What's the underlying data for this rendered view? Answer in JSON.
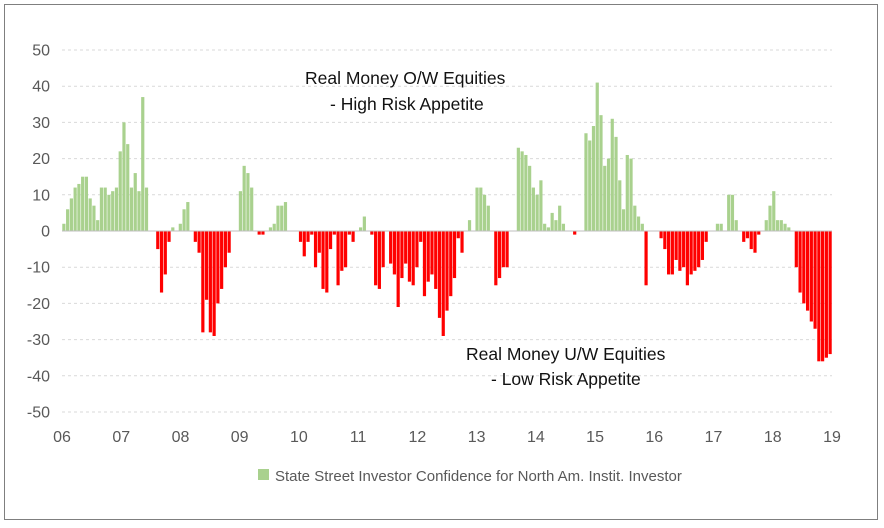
{
  "chart_data": {
    "type": "bar",
    "title": "",
    "xlabel": "",
    "ylabel": "",
    "ylim": [
      -50,
      50
    ],
    "yticks": [
      50,
      40,
      30,
      20,
      10,
      0,
      -10,
      -20,
      -30,
      -40,
      -50
    ],
    "xticks": [
      "06",
      "07",
      "08",
      "09",
      "10",
      "11",
      "12",
      "13",
      "14",
      "15",
      "16",
      "17",
      "18",
      "19"
    ],
    "x_start_year": 2006,
    "grid": true,
    "legend_position": "bottom",
    "series": [
      {
        "name": "State Street Investor Confidence for North Am. Instit. Investor",
        "positive_color": "#a9d18e",
        "negative_color": "#ff0000",
        "values": [
          2,
          6,
          9,
          12,
          13,
          15,
          15,
          9,
          7,
          3,
          12,
          12,
          10,
          11,
          12,
          22,
          30,
          24,
          12,
          16,
          11,
          37,
          12,
          0,
          0,
          -5,
          -17,
          -12,
          -3,
          1,
          0,
          2,
          6,
          8,
          0,
          -3,
          -6,
          -28,
          -19,
          -28,
          -29,
          -20,
          -16,
          -10,
          -6,
          0,
          0,
          11,
          18,
          16,
          12,
          0,
          -1,
          -1,
          0,
          1,
          2,
          7,
          7,
          8,
          0,
          0,
          0,
          -3,
          -7,
          -3,
          -1,
          -10,
          -6,
          -16,
          -17,
          -5,
          -1,
          -15,
          -11,
          -10,
          -1,
          -3,
          0,
          1,
          4,
          0,
          -1,
          -15,
          -16,
          -10,
          0,
          -9,
          -12,
          -21,
          -13,
          -9,
          -14,
          -15,
          -10,
          -3,
          -18,
          -14,
          -12,
          -16,
          -24,
          -29,
          -22,
          -18,
          -13,
          -2,
          -6,
          0,
          3,
          0,
          12,
          12,
          10,
          7,
          0,
          -15,
          -13,
          -10,
          -10,
          0,
          0,
          23,
          22,
          21,
          18,
          12,
          10,
          14,
          2,
          1,
          5,
          3,
          7,
          2,
          0,
          0,
          -1,
          0,
          0,
          27,
          25,
          29,
          41,
          32,
          18,
          20,
          31,
          26,
          14,
          6,
          21,
          20,
          7,
          4,
          2,
          -15,
          0,
          0,
          0,
          -2,
          -5,
          -12,
          -12,
          -8,
          -11,
          -10,
          -15,
          -12,
          -11,
          -10,
          -8,
          -3,
          0,
          0,
          2,
          2,
          0,
          10,
          10,
          3,
          0,
          -3,
          -2,
          -5,
          -6,
          -1,
          0,
          3,
          7,
          11,
          3,
          3,
          2,
          1,
          0,
          -10,
          -17,
          -20,
          -22,
          -25,
          -27,
          -36,
          -36,
          -35,
          -34
        ]
      }
    ],
    "annotations": [
      {
        "lines": [
          "Real Money O/W Equities",
          "-  High Risk Appetite"
        ]
      },
      {
        "lines": [
          "Real Money U/W Equities",
          "-  Low Risk Appetite"
        ]
      }
    ]
  }
}
